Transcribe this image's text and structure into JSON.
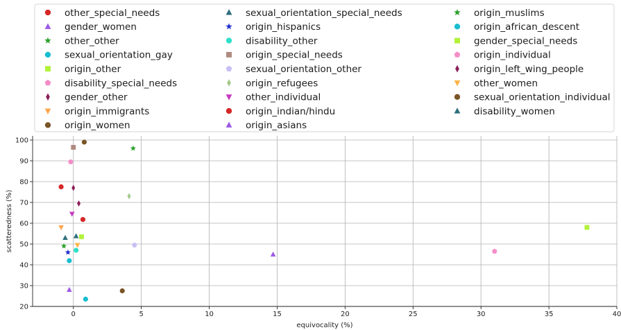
{
  "chart_data": {
    "type": "scatter",
    "xlabel": "equivocality (%)",
    "ylabel": "scatteredness (%)",
    "xlim": [
      -3,
      40
    ],
    "ylim": [
      20,
      102
    ],
    "xticks": [
      0,
      5,
      10,
      15,
      20,
      25,
      30,
      35,
      40
    ],
    "yticks": [
      20,
      30,
      40,
      50,
      60,
      70,
      80,
      90,
      100
    ],
    "grid": true,
    "legend_placement": "top",
    "legend_columns": 3,
    "series": [
      {
        "name": "other_special_needs",
        "marker": "circle",
        "color": "#d62728",
        "x": -0.9,
        "y": 77.5
      },
      {
        "name": "gender_women",
        "marker": "triangle-up",
        "color": "#9d5ae6",
        "x": -0.3,
        "y": 28
      },
      {
        "name": "other_other",
        "marker": "star",
        "color": "#2ca02c",
        "x": -0.7,
        "y": 49
      },
      {
        "name": "sexual_orientation_gay",
        "marker": "circle",
        "color": "#17becf",
        "x": -0.3,
        "y": 42
      },
      {
        "name": "origin_other",
        "marker": "square",
        "color": "#b2f23a",
        "x": 0.6,
        "y": 53.5
      },
      {
        "name": "disability_special_needs",
        "marker": "pentagon",
        "color": "#f58cc8",
        "x": -0.2,
        "y": 89.5
      },
      {
        "name": "gender_other",
        "marker": "thin-diamond",
        "color": "#8c1f5a",
        "x": 0.0,
        "y": 77
      },
      {
        "name": "origin_immigrants",
        "marker": "triangle-down",
        "color": "#ffa64d",
        "x": -0.9,
        "y": 58
      },
      {
        "name": "origin_women",
        "marker": "circle",
        "color": "#7a5528",
        "x": 0.8,
        "y": 99
      },
      {
        "name": "sexual_orientation_special_needs",
        "marker": "triangle-up",
        "color": "#2f6f7c",
        "x": -0.6,
        "y": 53
      },
      {
        "name": "origin_hispanics",
        "marker": "star",
        "color": "#2233cc",
        "x": -0.4,
        "y": 46
      },
      {
        "name": "disability_other",
        "marker": "circle",
        "color": "#2fe0c8",
        "x": 0.2,
        "y": 47
      },
      {
        "name": "origin_special_needs",
        "marker": "square",
        "color": "#b08a80",
        "x": 0.0,
        "y": 96.5
      },
      {
        "name": "sexual_orientation_other",
        "marker": "pentagon",
        "color": "#c8c0f5",
        "x": 4.5,
        "y": 49.5
      },
      {
        "name": "origin_refugees",
        "marker": "thin-diamond",
        "color": "#a3c98a",
        "x": 4.1,
        "y": 73
      },
      {
        "name": "other_individual",
        "marker": "triangle-down",
        "color": "#c83ac0",
        "x": -0.1,
        "y": 64.5
      },
      {
        "name": "origin_indian/hindu",
        "marker": "circle",
        "color": "#d62728",
        "x": 0.7,
        "y": 61.8
      },
      {
        "name": "origin_asians",
        "marker": "triangle-up",
        "color": "#9d5ae6",
        "x": 14.7,
        "y": 45
      },
      {
        "name": "origin_muslims",
        "marker": "star",
        "color": "#2ca02c",
        "x": 4.4,
        "y": 96
      },
      {
        "name": "origin_african_descent",
        "marker": "circle",
        "color": "#17becf",
        "x": 0.9,
        "y": 23.5
      },
      {
        "name": "gender_special_needs",
        "marker": "square",
        "color": "#b2f23a",
        "x": 37.8,
        "y": 58
      },
      {
        "name": "origin_individual",
        "marker": "pentagon",
        "color": "#f58cc8",
        "x": 31.0,
        "y": 46.5
      },
      {
        "name": "origin_left_wing_people",
        "marker": "thin-diamond",
        "color": "#8c1f5a",
        "x": 0.4,
        "y": 69.5
      },
      {
        "name": "other_women",
        "marker": "triangle-down",
        "color": "#ffb347",
        "x": 0.3,
        "y": 49.5
      },
      {
        "name": "sexual_orientation_individual",
        "marker": "circle",
        "color": "#7a5528",
        "x": 3.6,
        "y": 27.5
      },
      {
        "name": "disability_women",
        "marker": "triangle-up",
        "color": "#2f6f7c",
        "x": 0.2,
        "y": 53.8
      }
    ]
  }
}
